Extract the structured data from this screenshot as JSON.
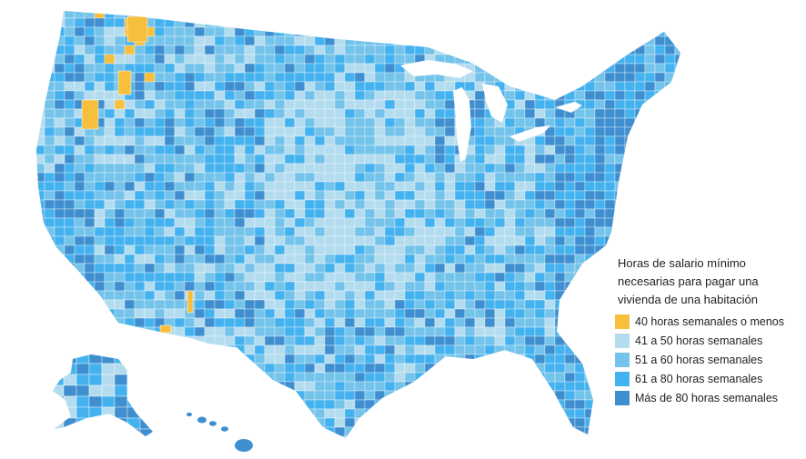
{
  "map": {
    "region": "Estados Unidos (por condado)",
    "colors": {
      "land_default": "#6ec2ea",
      "border": "#ffffff",
      "ocean": "#ffffff"
    }
  },
  "legend": {
    "title": "Horas de salario mínimo necesarias para pagar una vivienda de una habitación",
    "items": [
      {
        "label": "40 horas semanales o menos",
        "color": "#f7bf3c"
      },
      {
        "label": "41 a 50 horas semanales",
        "color": "#b3dcef"
      },
      {
        "label": "51 a 60 horas semanales",
        "color": "#74c3ea"
      },
      {
        "label": "61 a 80 horas semanales",
        "color": "#45b2f0"
      },
      {
        "label": "Más de 80 horas semanales",
        "color": "#3f8fd0"
      }
    ]
  }
}
